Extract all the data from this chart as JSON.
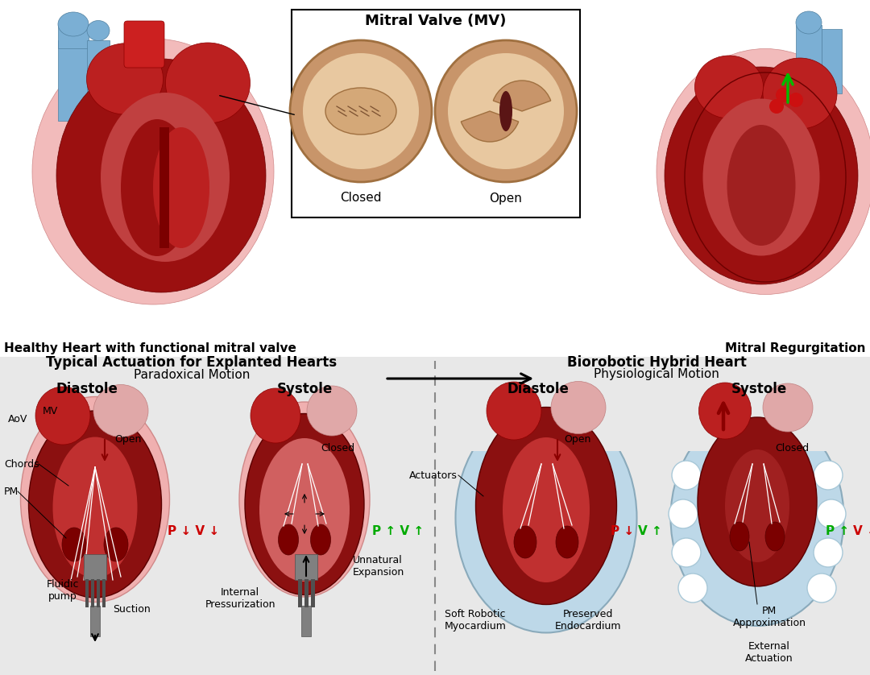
{
  "bg_color_top": "#ffffff",
  "bg_color_bottom": "#ebebeb",
  "title_left": "Healthy Heart with functional mitral valve",
  "title_right": "Mitral Regurgitation",
  "mv_title": "Mitral Valve (MV)",
  "mv_closed": "Closed",
  "mv_open": "Open",
  "bottom_left_title": "Typical Actuation for Explanted Hearts",
  "bottom_left_subtitle": "Paradoxical Motion",
  "bottom_right_title": "Biorobotic Hybrid Heart",
  "bottom_right_subtitle": "Physiological Motion",
  "diastole_label": "Diastole",
  "systole_label": "Systole",
  "blue_actuator": "#BDD8E8",
  "pump_gray": "#808080",
  "pump_dark": "#505050",
  "text_green": "#00AA00",
  "text_red": "#CC0000"
}
